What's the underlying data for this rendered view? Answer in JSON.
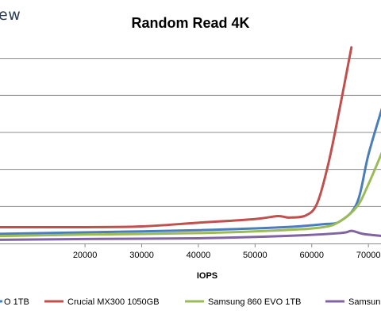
{
  "logo_text": "ew",
  "chart_data": {
    "type": "line",
    "title": "Random Read 4K",
    "xlabel": "IOPS",
    "ylabel": "",
    "xlim": [
      5000,
      72500
    ],
    "ylim": [
      0,
      2.7
    ],
    "xticks": [
      20000,
      30000,
      40000,
      50000,
      60000,
      70000
    ],
    "grid": {
      "y": true,
      "x": false
    },
    "legend_position": "bottom",
    "series": [
      {
        "name": "",
        "legend_label": "O 1TB",
        "color": "#4a7ebb",
        "x": [
          5000,
          20000,
          40000,
          55000,
          62000,
          65000,
          68000,
          70000,
          72500
        ],
        "y": [
          0.13,
          0.15,
          0.18,
          0.22,
          0.26,
          0.3,
          0.55,
          1.2,
          1.85
        ]
      },
      {
        "name": "Crucial MX300 1050GB",
        "legend_label": "Crucial MX300 1050GB",
        "color": "#c0504d",
        "x": [
          5000,
          20000,
          30000,
          40000,
          50000,
          54000,
          56000,
          59000,
          61000,
          63000,
          65000,
          67000
        ],
        "y": [
          0.22,
          0.22,
          0.23,
          0.28,
          0.33,
          0.37,
          0.35,
          0.38,
          0.55,
          1.1,
          1.85,
          2.65
        ]
      },
      {
        "name": "Samsung 860 EVO 1TB",
        "legend_label": "Samsung 860 EVO 1TB",
        "color": "#9bbb59",
        "x": [
          5000,
          20000,
          40000,
          55000,
          62000,
          65000,
          68000,
          70000,
          72500
        ],
        "y": [
          0.1,
          0.12,
          0.14,
          0.18,
          0.22,
          0.3,
          0.5,
          0.8,
          1.25
        ]
      },
      {
        "name": "",
        "legend_label": "Samsun",
        "color": "#8064a2",
        "x": [
          5000,
          20000,
          40000,
          55000,
          65000,
          67000,
          69000,
          72500
        ],
        "y": [
          0.05,
          0.06,
          0.07,
          0.1,
          0.14,
          0.17,
          0.13,
          0.1
        ]
      }
    ]
  }
}
